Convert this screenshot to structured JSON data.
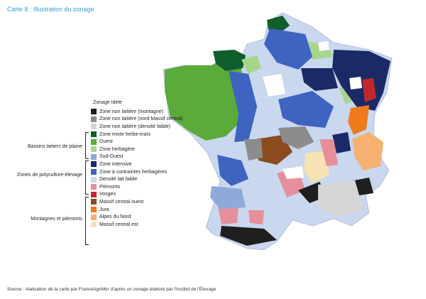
{
  "title": "Carte 8 : Illustration du zonage",
  "legend": {
    "title": "Zonage Idele",
    "items": [
      {
        "label": "Zone non laitière (montagne)",
        "color": "#1f1f1f"
      },
      {
        "label": "Zone non laitière (nord Massif central)",
        "color": "#8c8c8c"
      },
      {
        "label": "Zone non laitière (densité faible)",
        "color": "#d6d6d6"
      },
      {
        "label": "Zone mixte herbe-maïs",
        "color": "#0f5e2c"
      },
      {
        "label": "Ouest",
        "color": "#5aab3a"
      },
      {
        "label": "Zone herbagère",
        "color": "#a9d58b"
      },
      {
        "label": "Sud-Ouest",
        "color": "#8fa9d9"
      },
      {
        "label": "Zone intensive",
        "color": "#1b2a66"
      },
      {
        "label": "Zone à contraintes herbagères",
        "color": "#3f63c0"
      },
      {
        "label": "Densité lait faible",
        "color": "#c9d7ef"
      },
      {
        "label": "Piémonts",
        "color": "#e68f9a"
      },
      {
        "label": "Vosges",
        "color": "#c0282f"
      },
      {
        "label": "Massif central ouest",
        "color": "#8c4a1f"
      },
      {
        "label": "Jura",
        "color": "#ee7a1c"
      },
      {
        "label": "Alpes du Nord",
        "color": "#f6b070"
      },
      {
        "label": "Massif central est",
        "color": "#f6e3b4"
      }
    ],
    "groups": [
      {
        "label": "Bassins laitiers de plaine"
      },
      {
        "label": "Zones de polyculture-élevage"
      },
      {
        "label": "Montagnes et piémonts"
      }
    ]
  },
  "source": "Source : réalisation de la carte par FranceAgriMer d'après un zonage élaboré par l'Institut de l'Élevage"
}
